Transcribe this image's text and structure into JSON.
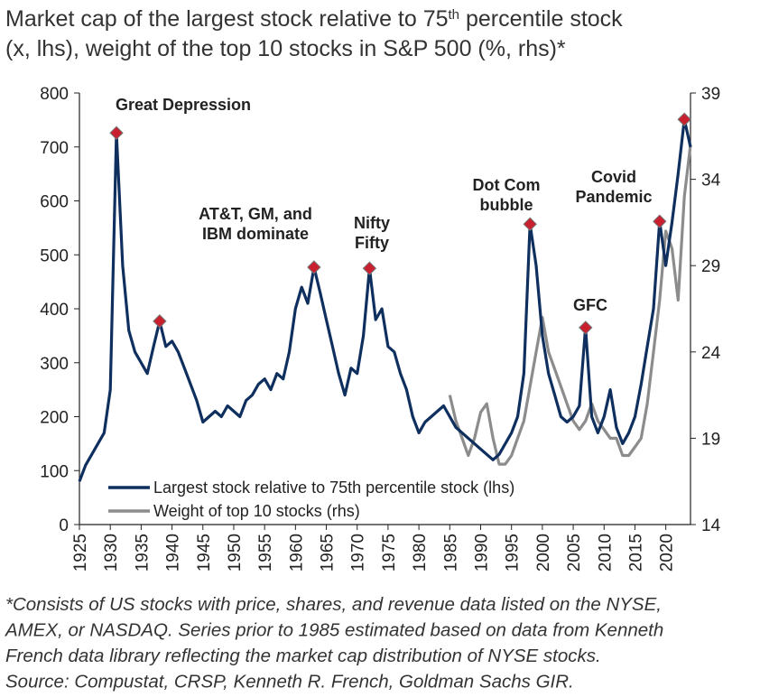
{
  "chart_data": {
    "type": "line",
    "title": [
      "Market cap of the largest stock relative to 75",
      "th",
      " percentile stock",
      "(x, lhs), weight of the top 10 stocks in S&P 500 (%, rhs)*"
    ],
    "xlim": [
      1925,
      2024
    ],
    "xticks": [
      1925,
      1930,
      1935,
      1940,
      1945,
      1950,
      1955,
      1960,
      1965,
      1970,
      1975,
      1980,
      1985,
      1990,
      1995,
      2000,
      2005,
      2010,
      2015,
      2020
    ],
    "ylim": [
      0,
      800
    ],
    "yticks": [
      0,
      100,
      200,
      300,
      400,
      500,
      600,
      700,
      800
    ],
    "y2lim": [
      14,
      39
    ],
    "y2ticks": [
      14,
      19,
      24,
      29,
      34,
      39
    ],
    "legend": "lower left",
    "series": [
      {
        "name": "Largest stock relative to 75th percentile stock (lhs)",
        "color": "#0f2f5f",
        "x": [
          1925,
          1926,
          1927,
          1928,
          1929,
          1930,
          1931,
          1932,
          1933,
          1934,
          1935,
          1936,
          1937,
          1938,
          1939,
          1940,
          1941,
          1942,
          1943,
          1944,
          1945,
          1946,
          1947,
          1948,
          1949,
          1950,
          1951,
          1952,
          1953,
          1954,
          1955,
          1956,
          1957,
          1958,
          1959,
          1960,
          1961,
          1962,
          1963,
          1964,
          1965,
          1966,
          1967,
          1968,
          1969,
          1970,
          1971,
          1972,
          1973,
          1974,
          1975,
          1976,
          1977,
          1978,
          1979,
          1980,
          1981,
          1982,
          1983,
          1984,
          1985,
          1986,
          1987,
          1988,
          1989,
          1990,
          1991,
          1992,
          1993,
          1994,
          1995,
          1996,
          1997,
          1998,
          1999,
          2000,
          2001,
          2002,
          2003,
          2004,
          2005,
          2006,
          2007,
          2008,
          2009,
          2010,
          2011,
          2012,
          2013,
          2014,
          2015,
          2016,
          2017,
          2018,
          2019,
          2020,
          2021,
          2022,
          2023,
          2024
        ],
        "values": [
          80,
          110,
          130,
          150,
          170,
          250,
          726,
          480,
          360,
          320,
          300,
          280,
          330,
          377,
          330,
          340,
          320,
          290,
          260,
          230,
          190,
          200,
          210,
          200,
          220,
          210,
          200,
          230,
          240,
          260,
          270,
          250,
          280,
          270,
          320,
          400,
          440,
          410,
          477,
          430,
          380,
          330,
          280,
          240,
          290,
          280,
          350,
          475,
          380,
          400,
          330,
          320,
          280,
          250,
          200,
          170,
          190,
          200,
          210,
          220,
          200,
          180,
          170,
          160,
          150,
          140,
          130,
          120,
          130,
          150,
          170,
          200,
          280,
          557,
          480,
          350,
          280,
          240,
          200,
          190,
          200,
          220,
          365,
          200,
          170,
          200,
          250,
          180,
          150,
          170,
          200,
          260,
          330,
          400,
          562,
          480,
          560,
          650,
          751,
          700
        ]
      },
      {
        "name": "Weight of top 10 stocks (rhs)",
        "color": "#8c8c8c",
        "axis": "y2",
        "x": [
          1985,
          1986,
          1987,
          1988,
          1989,
          1990,
          1991,
          1992,
          1993,
          1994,
          1995,
          1996,
          1997,
          1998,
          1999,
          2000,
          2001,
          2002,
          2003,
          2004,
          2005,
          2006,
          2007,
          2008,
          2009,
          2010,
          2011,
          2012,
          2013,
          2014,
          2015,
          2016,
          2017,
          2018,
          2019,
          2020,
          2021,
          2022,
          2023,
          2024
        ],
        "values": [
          21.5,
          20,
          19,
          18,
          19,
          20.5,
          21,
          19,
          17.5,
          17.5,
          18,
          19,
          20,
          22,
          24,
          26,
          24,
          23,
          22,
          21,
          20,
          19.5,
          20,
          21,
          20,
          19.5,
          19,
          19,
          18,
          18,
          18.5,
          19,
          21,
          24,
          27,
          31,
          30,
          27,
          33,
          36
        ]
      }
    ],
    "peaks": {
      "color": "#c8202f",
      "x": [
        1931,
        1938,
        1963,
        1972,
        1998,
        2007,
        2019,
        2023
      ],
      "values": [
        726,
        377,
        477,
        475,
        557,
        365,
        562,
        751
      ]
    },
    "annotations": [
      [
        "Great Depression"
      ],
      [
        "AT&T, GM, and",
        "IBM dominate"
      ],
      [
        "Nifty",
        "Fifty"
      ],
      [
        "Dot Com",
        "bubble"
      ],
      [
        "GFC"
      ],
      [
        "Covid",
        "Pandemic"
      ]
    ],
    "footnote": [
      "*Consists of US stocks with price, shares, and revenue data listed on the NYSE,",
      "AMEX, or NASDAQ. Series prior to 1985 estimated based on data from Kenneth",
      "French data library reflecting the market cap distribution of NYSE stocks.",
      "Source: Compustat, CRSP, Kenneth R. French, Goldman Sachs GIR."
    ]
  }
}
